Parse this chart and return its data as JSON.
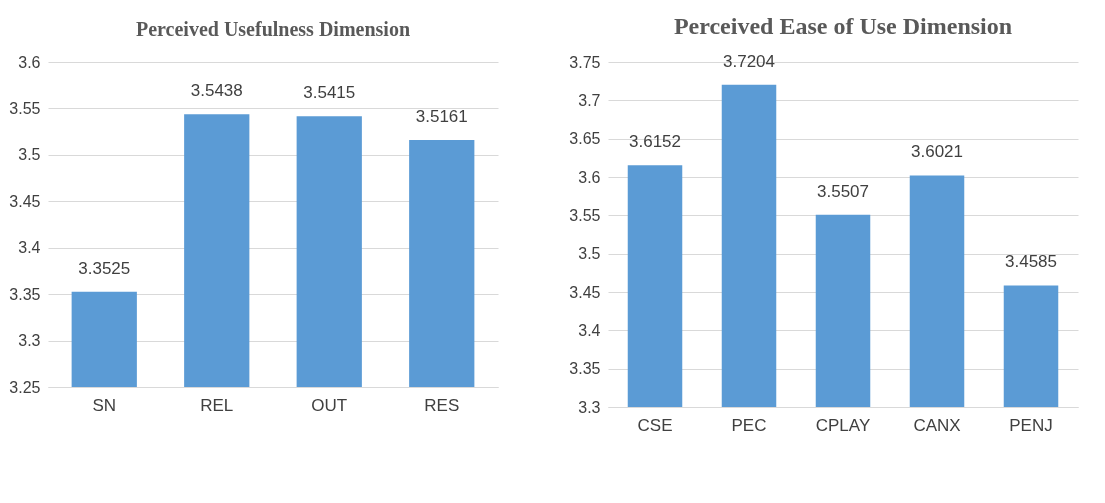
{
  "chart_data": [
    {
      "type": "bar",
      "title": "Perceived Usefulness Dimension",
      "categories": [
        "SN",
        "REL",
        "OUT",
        "RES"
      ],
      "values": [
        3.3525,
        3.5438,
        3.5415,
        3.5161
      ],
      "color": "#5b9bd5",
      "ylim": [
        3.25,
        3.6
      ],
      "yticks": [
        3.25,
        3.3,
        3.35,
        3.4,
        3.45,
        3.5,
        3.55,
        3.6
      ],
      "grid": "y",
      "data_labels": true
    },
    {
      "type": "bar",
      "title": "Perceived Ease of Use Dimension",
      "categories": [
        "CSE",
        "PEC",
        "CPLAY",
        "CANX",
        "PENJ"
      ],
      "values": [
        3.6152,
        3.7204,
        3.5507,
        3.6021,
        3.4585
      ],
      "color": "#5b9bd5",
      "ylim": [
        3.3,
        3.75
      ],
      "yticks": [
        3.3,
        3.35,
        3.4,
        3.45,
        3.5,
        3.55,
        3.6,
        3.65,
        3.7,
        3.75
      ],
      "grid": "y",
      "data_labels": true
    }
  ]
}
